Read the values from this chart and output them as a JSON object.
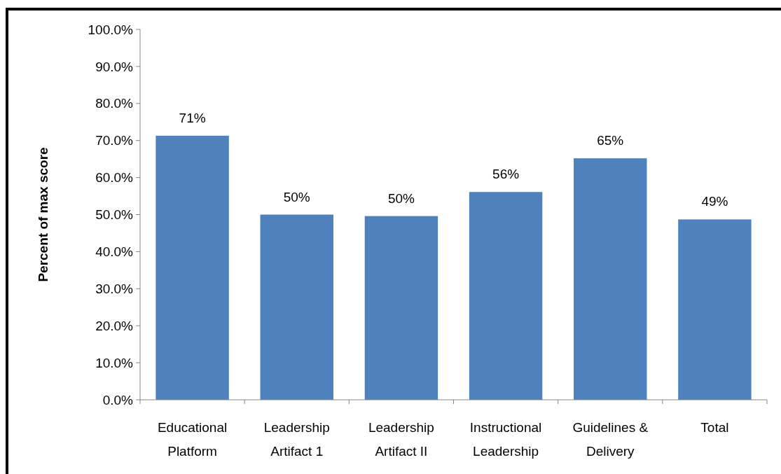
{
  "chart_data": {
    "type": "bar",
    "ylabel": "Percent of max score",
    "categories": [
      "Educational Platform",
      "Leadership Artifact 1",
      "Leadership Artifact II",
      "Instructional Leadership",
      "Guidelines & Delivery",
      "Total"
    ],
    "values": [
      71.3,
      50.0,
      49.6,
      56.1,
      65.2,
      48.7
    ],
    "value_labels": [
      "71%",
      "50%",
      "50%",
      "56%",
      "65%",
      "49%"
    ],
    "color": "#4f81bd",
    "ylim": [
      0,
      100
    ],
    "yticks": [
      {
        "value": 0,
        "label": "0.0%"
      },
      {
        "value": 10,
        "label": "10.0%"
      },
      {
        "value": 20,
        "label": "20.0%"
      },
      {
        "value": 30,
        "label": "30.0%"
      },
      {
        "value": 40,
        "label": "40.0%"
      },
      {
        "value": 50,
        "label": "50.0%"
      },
      {
        "value": 60,
        "label": "60.0%"
      },
      {
        "value": 70,
        "label": "70.0%"
      },
      {
        "value": 80,
        "label": "80.0%"
      },
      {
        "value": 90,
        "label": "90.0%"
      },
      {
        "value": 100,
        "label": "100.0%"
      }
    ],
    "grid": false
  }
}
